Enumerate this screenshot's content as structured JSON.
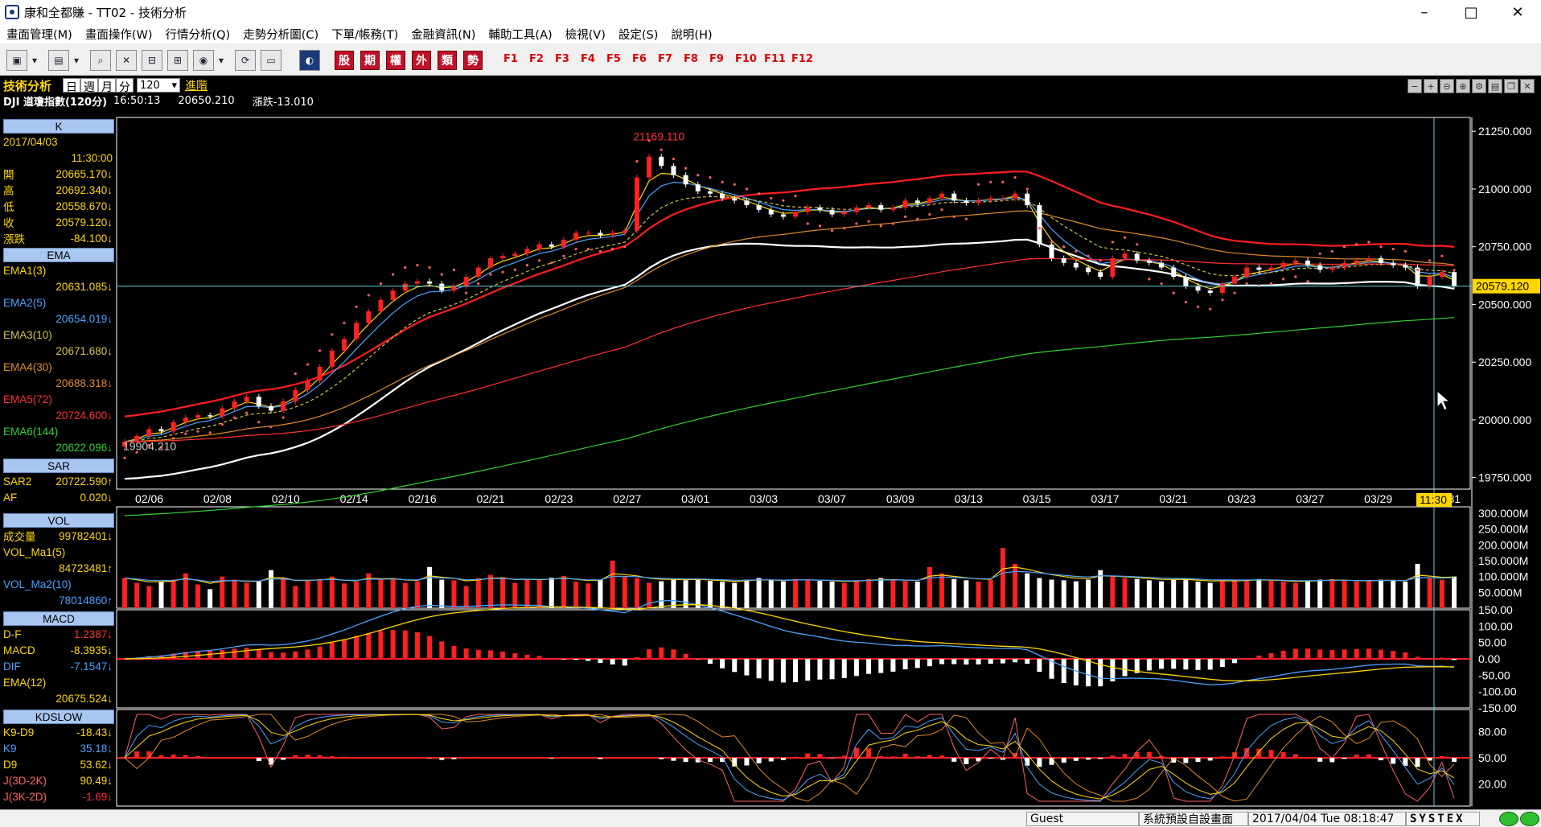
{
  "window": {
    "title": "康和全都賺 - TT02 - 技術分析",
    "min": "–",
    "max": "□",
    "close": "✕"
  },
  "menu": [
    "畫面管理(M)",
    "畫面操作(W)",
    "行情分析(Q)",
    "走勢分析圖(C)",
    "下單/帳務(T)",
    "金融資訊(N)",
    "輔助工具(A)",
    "檢視(V)",
    "設定(S)",
    "說明(H)"
  ],
  "toolbar": {
    "kbuttons": [
      "股",
      "期",
      "權",
      "外",
      "類",
      "勢"
    ],
    "fkeys": [
      "F1",
      "F2",
      "F3",
      "F4",
      "F5",
      "F6",
      "F7",
      "F8",
      "F9",
      "F10",
      "F11",
      "F12"
    ]
  },
  "header": {
    "title": "技術分析",
    "periods": [
      "日",
      "週",
      "月",
      "分"
    ],
    "count": "120",
    "advanced": "進階",
    "symbol": "DJI 道瓊指數(120分)",
    "time": "16:50:13",
    "price": "20650.210",
    "change": "漲跌-13.010"
  },
  "panels": {
    "k": {
      "header": "K",
      "date": "2017/04/03",
      "time": "11:30:00",
      "rows": [
        {
          "label": "開",
          "value": "20665.170↓"
        },
        {
          "label": "高",
          "value": "20692.340↓"
        },
        {
          "label": "低",
          "value": "20558.670↓"
        },
        {
          "label": "收",
          "value": "20579.120↓"
        },
        {
          "label": "漲跌",
          "value": "-84.100↓"
        }
      ]
    },
    "ema": {
      "header": "EMA",
      "rows": [
        {
          "label": "EMA1(3)",
          "value": "20631.085↓",
          "color": "#ffd700"
        },
        {
          "label": "EMA2(5)",
          "value": "20654.019↓",
          "color": "#4aa3ff"
        },
        {
          "label": "EMA3(10)",
          "value": "20671.680↓",
          "color": "#d4c44a"
        },
        {
          "label": "EMA4(30)",
          "value": "20688.318↓",
          "color": "#e08a2a"
        },
        {
          "label": "EMA5(72)",
          "value": "20724.600↓",
          "color": "#ff3030"
        },
        {
          "label": "EMA6(144)",
          "value": "20622.096↓",
          "color": "#30d030"
        }
      ]
    },
    "sar": {
      "header": "SAR",
      "rows": [
        {
          "label": "SAR2",
          "value": "20722.590↑"
        },
        {
          "label": "AF",
          "value": "0.020↓"
        }
      ]
    },
    "vol": {
      "header": "VOL",
      "rows": [
        {
          "label": "成交量",
          "value": "99782401↓",
          "color": "#ffd700"
        },
        {
          "label": "VOL_Ma1(5)",
          "value": "",
          "color": "#ffd700"
        },
        {
          "label": "",
          "value": "84723481↑",
          "color": "#ffd700"
        },
        {
          "label": "VOL_Ma2(10)",
          "value": "",
          "color": "#4aa3ff"
        },
        {
          "label": "",
          "value": "78014860↑",
          "color": "#4aa3ff"
        }
      ]
    },
    "macd": {
      "header": "MACD",
      "rows": [
        {
          "label": "D-F",
          "value": "1.2387↓",
          "color": "#ffd700",
          "vcolor": "#ff3030"
        },
        {
          "label": "MACD",
          "value": "-8.3935↓",
          "color": "#ffd700",
          "vcolor": "#ffd700"
        },
        {
          "label": "DIF",
          "value": "-7.1547↓",
          "color": "#4aa3ff",
          "vcolor": "#4aa3ff"
        },
        {
          "label": "EMA(12)",
          "value": "",
          "color": "#ffd700",
          "vcolor": "#ffd700"
        },
        {
          "label": "",
          "value": "20675.524↓",
          "color": "#ffd700",
          "vcolor": "#ffd700"
        }
      ]
    },
    "kd": {
      "header": "KDSLOW",
      "rows": [
        {
          "label": "K9-D9",
          "value": "-18.43↓",
          "color": "#ffd700",
          "vcolor": "#ffd700"
        },
        {
          "label": "K9",
          "value": "35.18↓",
          "color": "#4aa3ff",
          "vcolor": "#4aa3ff"
        },
        {
          "label": "D9",
          "value": "53.62↓",
          "color": "#ffd700",
          "vcolor": "#ffd700"
        },
        {
          "label": "J(3D-2K)",
          "value": "90.49↓",
          "color": "#ff6060",
          "vcolor": "#ffd700"
        },
        {
          "label": "J(3K-2D)",
          "value": "-1.69↓",
          "color": "#ff6060",
          "vcolor": "#ff3030"
        }
      ]
    }
  },
  "chart_data": {
    "type": "line",
    "title": "DJI 道瓊指數(120分)",
    "x_ticks": [
      "02/06",
      "02/08",
      "02/10",
      "02/14",
      "02/16",
      "02/21",
      "02/23",
      "02/27",
      "03/01",
      "03/03",
      "03/07",
      "03/09",
      "03/13",
      "03/15",
      "03/17",
      "03/21",
      "03/23",
      "03/27",
      "03/29",
      "03/31"
    ],
    "cursor_label": "11:30",
    "price_axis": [
      "21250.000",
      "21000.000",
      "20750.000",
      "20500.000",
      "20250.000",
      "20000.000",
      "19750.000"
    ],
    "price_ylim": [
      19700,
      21310
    ],
    "last_price": "20579.120",
    "high_label": "21169.110",
    "low_label": "19904.210",
    "volume_axis": [
      "300.000M",
      "250.000M",
      "200.000M",
      "150.000M",
      "100.000M",
      "50.000M"
    ],
    "macd_axis": [
      "150.00",
      "100.00",
      "50.00",
      "0.00",
      "-50.00",
      "-100.00",
      "-150.00"
    ],
    "kd_axis": [
      "80.00",
      "50.00",
      "20.00"
    ],
    "close_series": [
      19905,
      19930,
      19960,
      19950,
      19990,
      20010,
      20020,
      20015,
      20050,
      20080,
      20100,
      20060,
      20040,
      20080,
      20130,
      20170,
      20230,
      20300,
      20350,
      20420,
      20470,
      20520,
      20560,
      20590,
      20600,
      20590,
      20560,
      20580,
      20620,
      20660,
      20700,
      20710,
      20720,
      20740,
      20760,
      20750,
      20780,
      20810,
      20810,
      20800,
      20810,
      20820,
      21050,
      21140,
      21100,
      21060,
      21020,
      20990,
      20980,
      20960,
      20950,
      20930,
      20910,
      20890,
      20880,
      20900,
      20920,
      20910,
      20890,
      20900,
      20920,
      20930,
      20910,
      20920,
      20950,
      20940,
      20960,
      20980,
      20950,
      20940,
      20950,
      20960,
      20960,
      20980,
      20930,
      20760,
      20700,
      20680,
      20660,
      20640,
      20620,
      20700,
      20720,
      20690,
      20680,
      20660,
      20620,
      20580,
      20560,
      20550,
      20590,
      20620,
      20660,
      20650,
      20660,
      20680,
      20690,
      20670,
      20650,
      20660,
      20680,
      20690,
      20700,
      20680,
      20670,
      20660,
      20580,
      20620,
      20640,
      20579
    ],
    "volume_series": [
      95,
      80,
      70,
      85,
      90,
      110,
      75,
      60,
      100,
      90,
      80,
      85,
      120,
      95,
      70,
      88,
      92,
      100,
      78,
      84,
      110,
      90,
      95,
      80,
      85,
      130,
      90,
      88,
      70,
      95,
      105,
      98,
      80,
      92,
      88,
      96,
      102,
      84,
      78,
      90,
      150,
      100,
      95,
      80,
      85,
      90,
      88,
      92,
      86,
      84,
      80,
      90,
      95,
      88,
      85,
      92,
      90,
      86,
      84,
      80,
      88,
      92,
      95,
      90,
      86,
      84,
      130,
      110,
      92,
      88,
      84,
      90,
      190,
      140,
      110,
      95,
      90,
      88,
      85,
      90,
      120,
      100,
      95,
      92,
      88,
      85,
      90,
      92,
      84,
      80,
      88,
      86,
      90,
      92,
      88,
      84,
      80,
      86,
      90,
      92,
      88,
      84,
      86,
      90,
      88,
      84,
      140,
      95,
      90,
      100
    ],
    "series": [
      {
        "name": "EMA1(3)",
        "color": "#ffd700"
      },
      {
        "name": "EMA2(5)",
        "color": "#4aa3ff"
      },
      {
        "name": "EMA3(10)",
        "color": "#d4c44a"
      },
      {
        "name": "EMA4(30)",
        "color": "#e08a2a"
      },
      {
        "name": "EMA5(72)",
        "color": "#ff3030"
      },
      {
        "name": "EMA6(144)",
        "color": "#30d030"
      }
    ]
  },
  "statusbar": {
    "user": "Guest",
    "layout": "系統預設自設畫面",
    "datetime": "2017/04/04 Tue 08:18:47",
    "brand": "SYSTEX"
  }
}
